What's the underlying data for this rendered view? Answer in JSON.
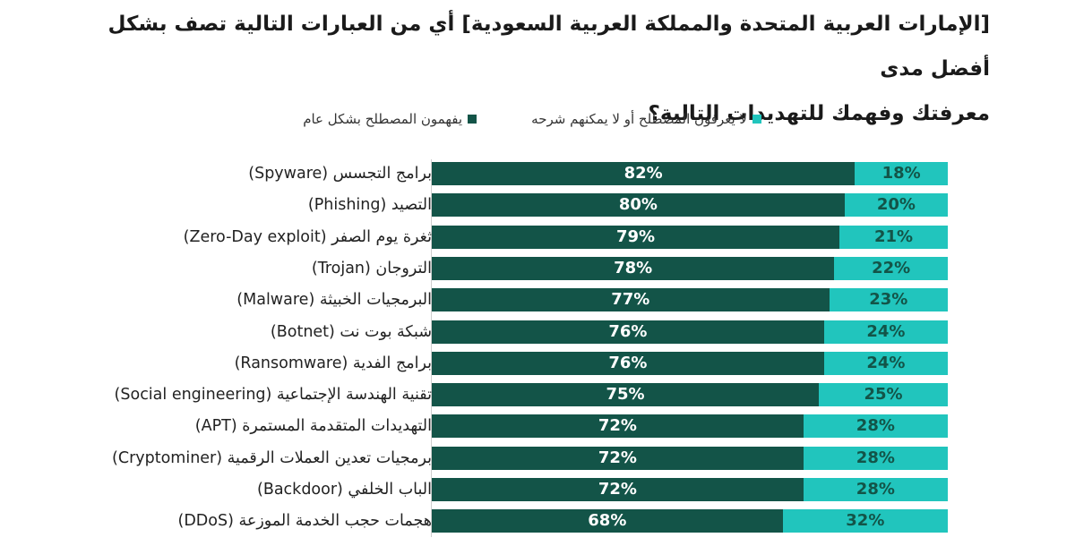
{
  "title": {
    "line1": "[الإمارات العربية المتحدة والمملكة العربية السعودية] أي من العبارات التالية تصف بشكل أفضل مدى",
    "line2": "معرفتك وفهمك للتهديدات التالية؟"
  },
  "colors": {
    "understand": "#135448",
    "unknown": "#21c5bd"
  },
  "legend": {
    "unknown": "لا يعرفون المصطلح أو لا يمكنهم شرحه",
    "understand": "يفهمون المصطلح بشكل عام"
  },
  "chart_data": {
    "type": "bar",
    "orientation": "horizontal",
    "stacked": true,
    "categories": [
      "برامج التجسس (Spyware)",
      "التصيد (Phishing)",
      "ثغرة يوم الصفر (Zero-Day exploit)",
      "التروجان (Trojan)",
      "البرمجيات الخبيثة (Malware)",
      "شبكة بوت نت (Botnet)",
      "برامج الفدية (Ransomware)",
      "تقنية الهندسة الإجتماعية (Social engineering)",
      "التهديدات المتقدمة المستمرة (APT)",
      "برمجيات تعدين العملات الرقمية (Cryptominer)",
      "الباب الخلفي (Backdoor)",
      "هجمات حجب الخدمة الموزعة (DDoS)"
    ],
    "series": [
      {
        "name": "يفهمون المصطلح بشكل عام",
        "values": [
          82,
          80,
          79,
          78,
          77,
          76,
          76,
          75,
          72,
          72,
          72,
          68
        ]
      },
      {
        "name": "لا يعرفون المصطلح أو لا يمكنهم شرحه",
        "values": [
          18,
          20,
          21,
          22,
          23,
          24,
          24,
          25,
          28,
          28,
          28,
          32
        ]
      }
    ],
    "value_labels": [
      [
        "82%",
        "80%",
        "79%",
        "78%",
        "77%",
        "76%",
        "76%",
        "75%",
        "72%",
        "72%",
        "72%",
        "68%"
      ],
      [
        "18%",
        "20%",
        "21%",
        "22%",
        "23%",
        "24%",
        "24%",
        "25%",
        "28%",
        "28%",
        "28%",
        "32%"
      ]
    ],
    "xlim": [
      0,
      100
    ],
    "grid": false,
    "legend_position": "top"
  }
}
